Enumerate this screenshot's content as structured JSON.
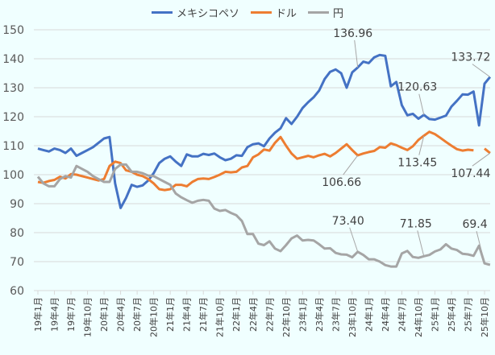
{
  "chart_data": {
    "type": "line",
    "title": "",
    "xlabel": "",
    "ylabel": "",
    "ylim": [
      60,
      150
    ],
    "yticks": [
      60,
      70,
      80,
      90,
      100,
      110,
      120,
      130,
      140,
      150
    ],
    "grid": true,
    "legend_position": "top",
    "x_tick_labels": [
      "19年1月",
      "19年4月",
      "19年7月",
      "19年10月",
      "20年1月",
      "20年4月",
      "20年7月",
      "20年10月",
      "21年1月",
      "21年4月",
      "21年7月",
      "21年10月",
      "22年1月",
      "22年4月",
      "22年7月",
      "22年10月",
      "23年1月",
      "23年4月",
      "23年7月",
      "23年10月",
      "24年1月",
      "24年4月",
      "24年7月",
      "24年10月",
      "25年1月",
      "25年4月",
      "25年7月",
      "25年10月"
    ],
    "x_start": "2019-01",
    "x_end": "2025-11",
    "series": [
      {
        "name": "メキシコペソ",
        "color": "#4472C4",
        "values": [
          109,
          108.5,
          108,
          109,
          108.5,
          107.5,
          109,
          106.5,
          107.5,
          108.5,
          109.5,
          111,
          112.5,
          113,
          97,
          88.5,
          92,
          96.5,
          95.8,
          96.3,
          98,
          100.5,
          104,
          105.5,
          106.3,
          104.5,
          103,
          107,
          106.3,
          106.3,
          107.2,
          106.8,
          107.3,
          106,
          105,
          105.5,
          106.7,
          106.5,
          109.5,
          110.5,
          110.8,
          109.8,
          112.5,
          114.5,
          116,
          119.5,
          117.5,
          120,
          123,
          125,
          126.7,
          129,
          133,
          135.5,
          136.3,
          135,
          130,
          135.3,
          136.96,
          139,
          138.5,
          140.5,
          141.3,
          141,
          130.5,
          132,
          124,
          120.5,
          121,
          119.3,
          120.63,
          119.2,
          119,
          119.7,
          120.4,
          123.5,
          125.5,
          127.7,
          127.6,
          128.7,
          117,
          131.4,
          133.72
        ]
      },
      {
        "name": "ドル",
        "color": "#ED7D31",
        "values": [
          97.5,
          97.2,
          97.8,
          98.2,
          99.3,
          98.7,
          100.2,
          100,
          99.5,
          99,
          98.5,
          98,
          98.5,
          103,
          104.5,
          104,
          101.5,
          101,
          100,
          99.5,
          98.5,
          97,
          95,
          94.7,
          95,
          96.5,
          96.5,
          96,
          97.5,
          98.5,
          98.7,
          98.5,
          99.2,
          100,
          101,
          100.8,
          101,
          102.5,
          103,
          106,
          107,
          108.7,
          108.3,
          111,
          113,
          110,
          107.3,
          105.5,
          106,
          106.5,
          106,
          106.7,
          107.2,
          106.3,
          107.5,
          109,
          110.5,
          108.5,
          106.66,
          107.3,
          107.8,
          108.2,
          109.5,
          109.3,
          110.8,
          110.2,
          109.3,
          108.5,
          109.8,
          112,
          113.45,
          114.8,
          114,
          112.7,
          111.3,
          110,
          108.8,
          108.3,
          108.6,
          108.4,
          null,
          109,
          107.44
        ]
      },
      {
        "name": "円",
        "color": "#A5A5A5",
        "values": [
          99.3,
          97,
          96,
          96,
          98.5,
          99.5,
          99,
          103,
          102,
          101,
          99.5,
          98.5,
          97.5,
          97.5,
          102,
          103.5,
          103.5,
          101,
          101,
          100.5,
          99.7,
          99.5,
          98.5,
          97.5,
          96.5,
          93.5,
          92.2,
          91.2,
          90.3,
          91,
          91.3,
          91,
          88.3,
          87.5,
          87.8,
          86.8,
          86,
          84,
          79.5,
          79.5,
          76.2,
          75.7,
          77,
          74.5,
          73.6,
          75.7,
          78,
          79,
          77.3,
          77.5,
          77.3,
          76,
          74.5,
          74.6,
          73,
          72.5,
          72.4,
          71.5,
          73.4,
          72.3,
          70.8,
          70.8,
          70,
          68.8,
          68.3,
          68.3,
          72.8,
          73.7,
          71.6,
          71.3,
          71.85,
          72.3,
          73.5,
          74.2,
          76,
          74.5,
          74,
          72.7,
          72.5,
          72,
          75.5,
          69.4,
          68.9
        ]
      }
    ],
    "annotations": [
      {
        "series": 0,
        "point": 58,
        "text": "136.96"
      },
      {
        "series": 0,
        "point": 82,
        "text": "133.72"
      },
      {
        "series": 0,
        "point": 70,
        "text": "120.63"
      },
      {
        "series": 1,
        "point": 58,
        "text": "106.66"
      },
      {
        "series": 1,
        "point": 70,
        "text": "113.45"
      },
      {
        "series": 1,
        "point": 82,
        "text": "107.44"
      },
      {
        "series": 2,
        "point": 58,
        "text": "73.40"
      },
      {
        "series": 2,
        "point": 70,
        "text": "71.85"
      },
      {
        "series": 2,
        "point": 81,
        "text": "69.4"
      }
    ]
  }
}
